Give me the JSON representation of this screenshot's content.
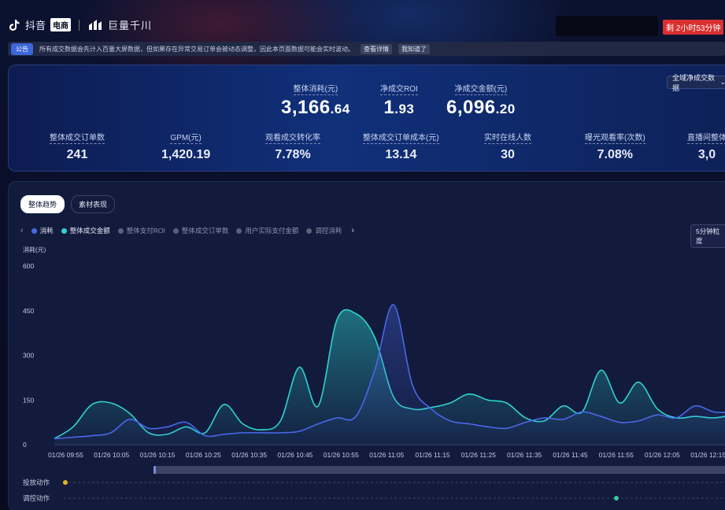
{
  "header": {
    "brand_douyin": "抖音",
    "brand_ec": "电商",
    "brand_qianchuan": "巨量千川",
    "timer": "剩 2小时53分钟"
  },
  "notice": {
    "tag": "公告",
    "text": "所有成交数据会先计入百量大屏数据，但如果存在异常交易订单会被动态调整，因此本页面数据可能会实时波动。",
    "detail_btn": "查看详情",
    "got_it_btn": "我知道了"
  },
  "kpi_main": [
    {
      "label": "整体消耗(元)",
      "int": "3,166",
      "dec": ".64"
    },
    {
      "label": "净成交ROI",
      "int": "1",
      "dec": ".93"
    },
    {
      "label": "净成交金额(元)",
      "int": "6,096",
      "dec": ".20"
    }
  ],
  "kpi_sub": [
    {
      "label": "整体成交订单数",
      "value": "241"
    },
    {
      "label": "GPM(元)",
      "value": "1,420.19"
    },
    {
      "label": "观看成交转化率",
      "value": "7.78%"
    },
    {
      "label": "整体成交订单成本(元)",
      "value": "13.14"
    },
    {
      "label": "实时在线人数",
      "value": "30"
    },
    {
      "label": "曝光观看率(次数)",
      "value": "7.08%"
    },
    {
      "label": "直播间整体",
      "value": "3,0"
    }
  ],
  "kpi_select": "全域净成交数据",
  "tabs": [
    {
      "label": "整体趋势",
      "active": true
    },
    {
      "label": "素材表现",
      "active": false
    }
  ],
  "legend": [
    {
      "label": "消耗",
      "color": "#4a67e8",
      "on": true
    },
    {
      "label": "整体成交金额",
      "color": "#2fd4d0",
      "on": true
    },
    {
      "label": "整体支付ROI",
      "color": "#5b6278",
      "on": false
    },
    {
      "label": "整体成交订单数",
      "color": "#5b6278",
      "on": false
    },
    {
      "label": "用户实际支付金额",
      "color": "#5b6278",
      "on": false
    },
    {
      "label": "调控消耗",
      "color": "#5b6278",
      "on": false
    }
  ],
  "granularity_btn": "5分钟粒度",
  "chart_data": {
    "type": "area",
    "ylabel": "消耗(元)",
    "ylim": [
      0,
      600
    ],
    "yticks": [
      "600",
      "450",
      "300",
      "150",
      "0"
    ],
    "xticks": [
      "01/26 09:55",
      "01/26 10:05",
      "01/26 10:15",
      "01/26 10:25",
      "01/26 10:35",
      "01/26 10:45",
      "01/26 10:55",
      "01/26 11:05",
      "01/26 11:15",
      "01/26 11:25",
      "01/26 11:35",
      "01/26 11:45",
      "01/26 11:55",
      "01/26 12:05",
      "01/26 12:15"
    ],
    "series": [
      {
        "name": "消耗",
        "color": "#4a67e8",
        "values": [
          20,
          25,
          30,
          40,
          85,
          55,
          60,
          75,
          30,
          35,
          40,
          40,
          40,
          45,
          70,
          90,
          95,
          250,
          470,
          200,
          120,
          80,
          70,
          60,
          55,
          75,
          90,
          85,
          110,
          95,
          75,
          80,
          100,
          90,
          130,
          110,
          110
        ]
      },
      {
        "name": "整体成交金额",
        "color": "#2fd4d0",
        "values": [
          20,
          60,
          135,
          140,
          105,
          40,
          35,
          60,
          40,
          135,
          70,
          50,
          80,
          260,
          130,
          420,
          440,
          360,
          160,
          120,
          125,
          140,
          170,
          150,
          140,
          90,
          80,
          130,
          110,
          250,
          140,
          210,
          120,
          90,
          95,
          90,
          100
        ]
      }
    ],
    "action_rows": [
      {
        "label": "投放动作"
      },
      {
        "label": "调控动作"
      }
    ]
  }
}
